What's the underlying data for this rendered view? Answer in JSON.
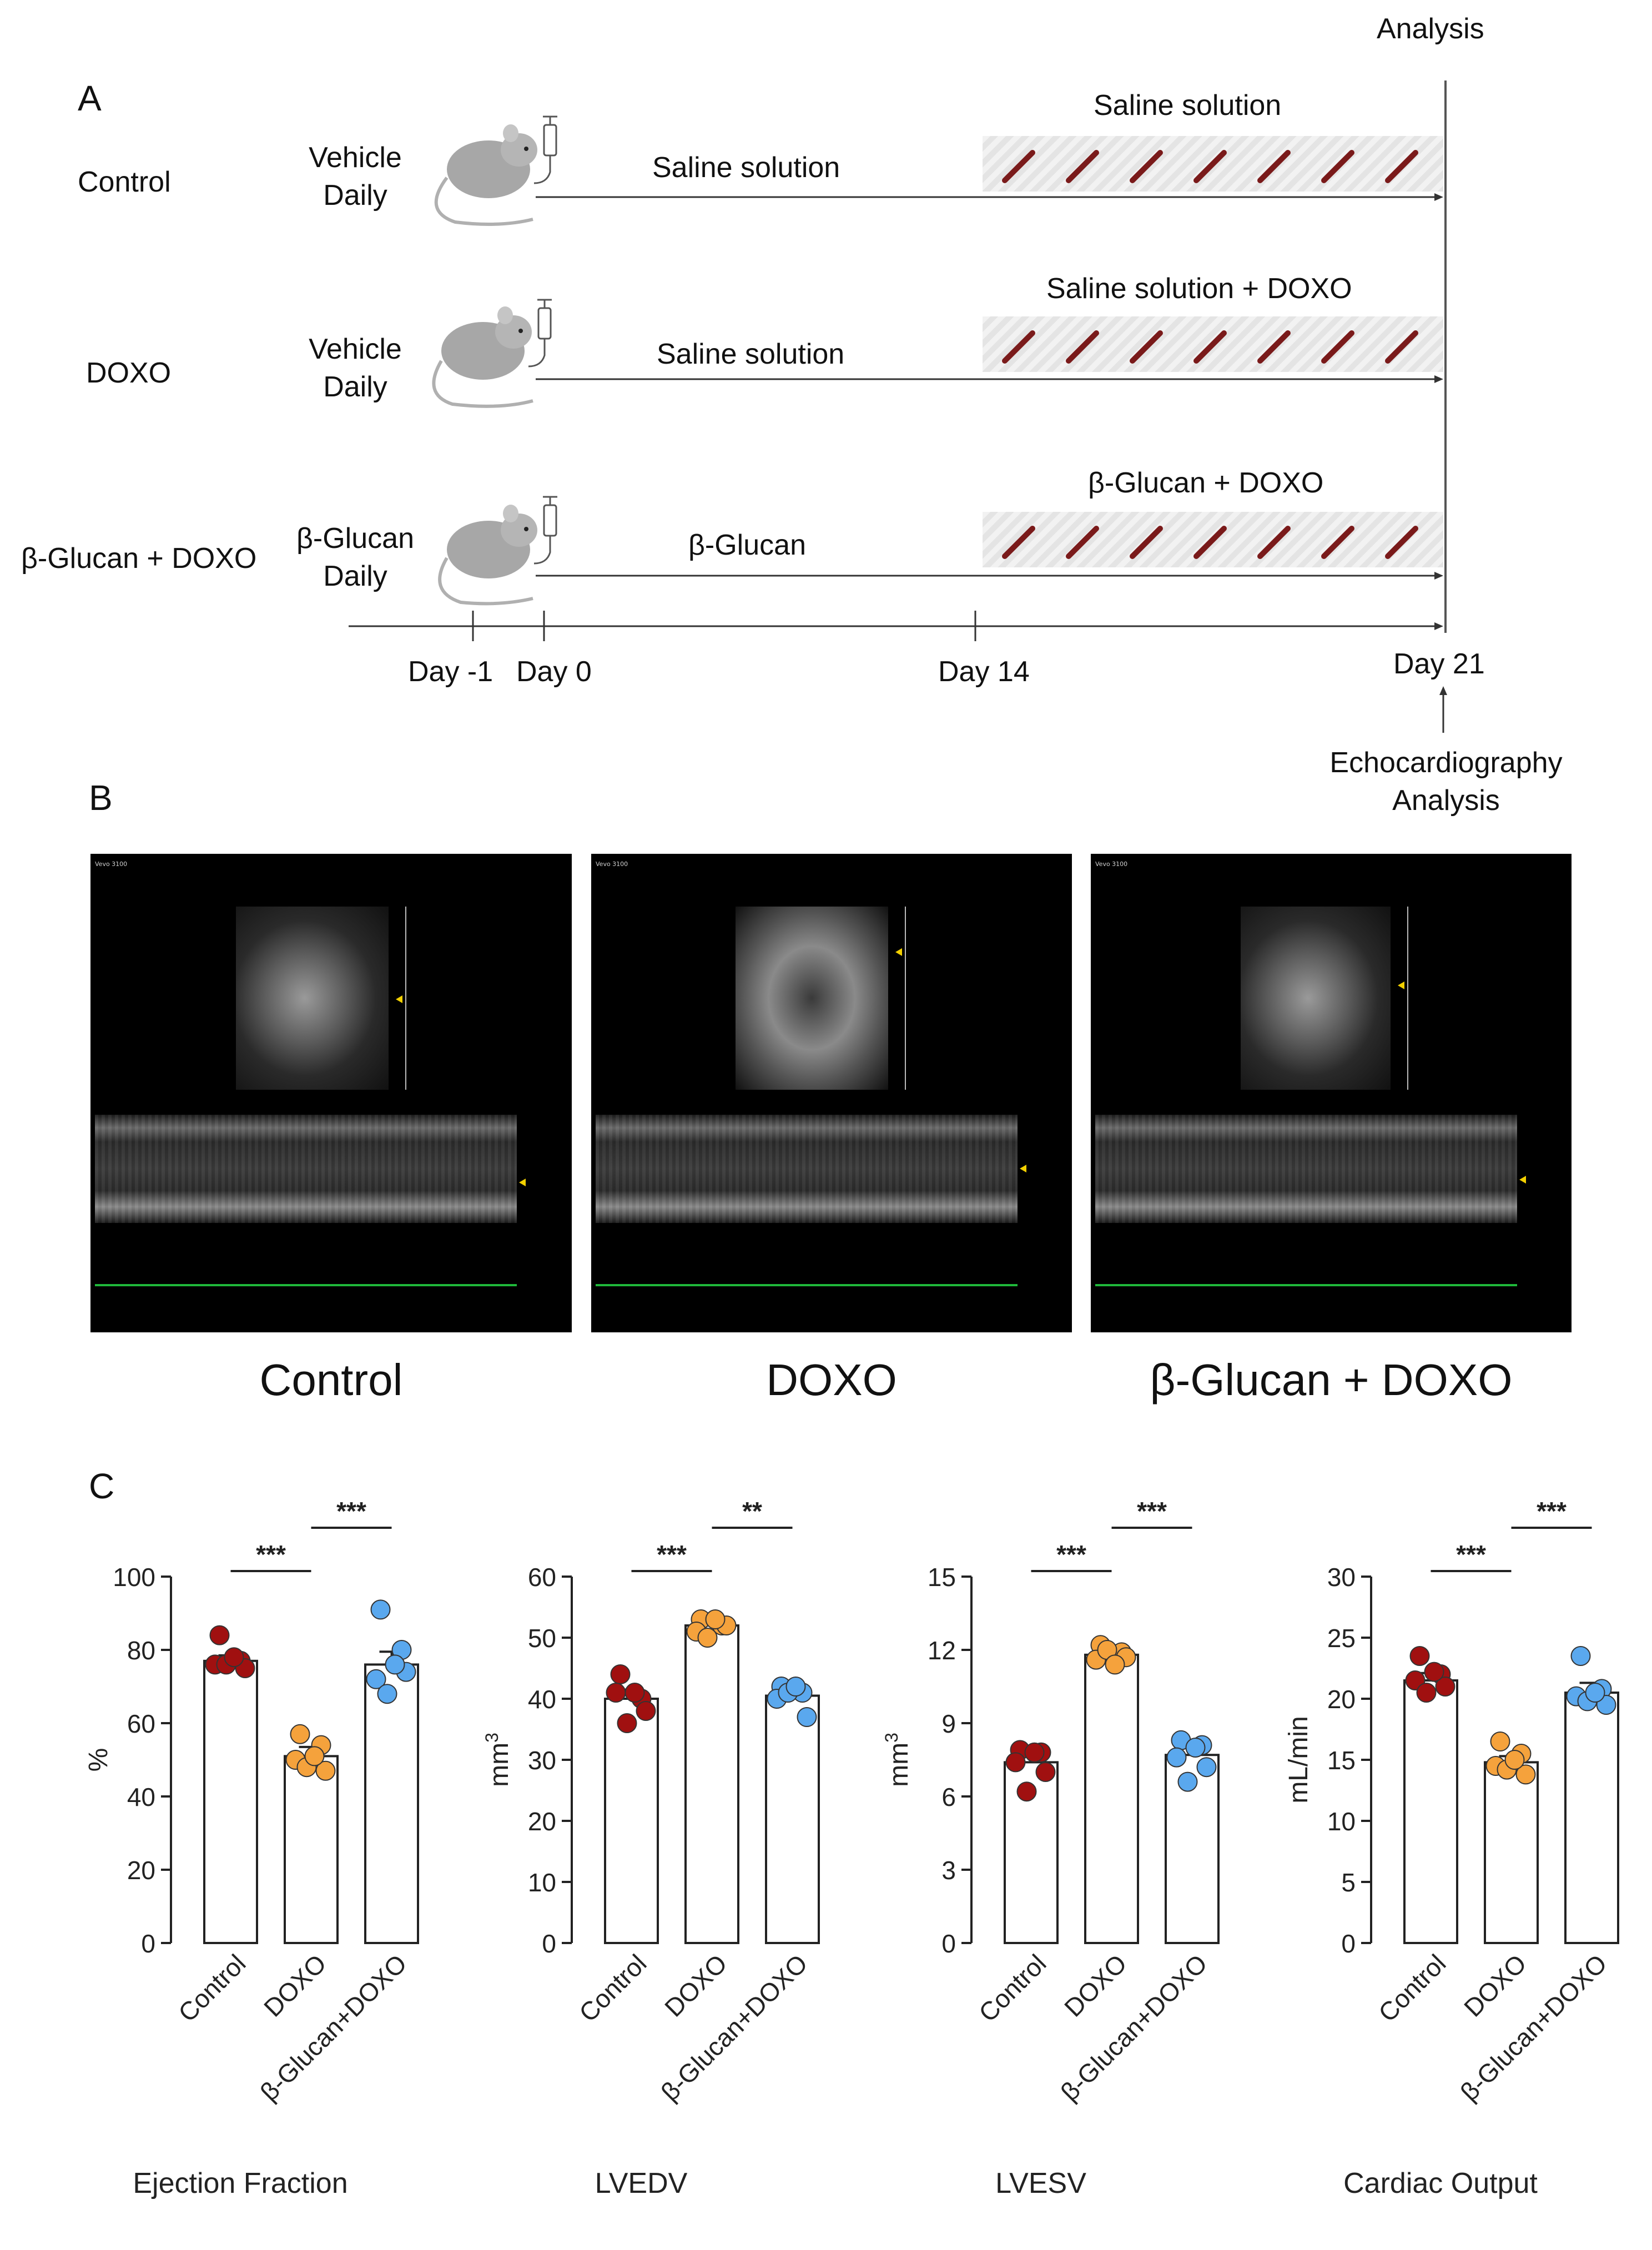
{
  "panelA": {
    "letter": "A",
    "analysis_top": "Analysis",
    "groups": [
      {
        "name": "Control",
        "treatment": "Vehicle\nDaily",
        "pretreat": "Saline solution",
        "phase2": "Saline solution"
      },
      {
        "name": "DOXO",
        "treatment": "Vehicle\nDaily",
        "pretreat": "Saline solution",
        "phase2": "Saline solution + DOXO"
      },
      {
        "name": "β-Glucan + DOXO",
        "treatment": "β-Glucan\nDaily",
        "pretreat": "β-Glucan",
        "phase2": "β-Glucan + DOXO"
      }
    ],
    "days": [
      "Day -1",
      "Day 0",
      "Day 14",
      "Day 21"
    ],
    "echo_label": "Echocardiography\nAnalysis"
  },
  "panelB": {
    "letter": "B",
    "images": [
      {
        "caption": "Control",
        "device": "Vevo 3100"
      },
      {
        "caption": "DOXO",
        "device": "Vevo 3100"
      },
      {
        "caption": "β-Glucan + DOXO",
        "device": "Vevo 3100"
      }
    ]
  },
  "panelC": {
    "letter": "C",
    "colors": {
      "control": "#a01010",
      "doxo": "#f5a23c",
      "glucan": "#5aa8ee"
    }
  },
  "chart_data": [
    {
      "type": "bar",
      "title": "Ejection Fraction",
      "ylabel": "%",
      "ylim": [
        0,
        100
      ],
      "yticks": [
        0,
        20,
        40,
        60,
        80,
        100
      ],
      "categories": [
        "Control",
        "DOXO",
        "β-Glucan+DOXO"
      ],
      "values": [
        77,
        51,
        76
      ],
      "errors": [
        1.5,
        2.5,
        3.5
      ],
      "points": [
        [
          84,
          77,
          76,
          75,
          76,
          78
        ],
        [
          57,
          54,
          50,
          47,
          48,
          51
        ],
        [
          91,
          80,
          72,
          74,
          68,
          76
        ]
      ],
      "significance": [
        {
          "from": 0,
          "to": 1,
          "label": "***"
        },
        {
          "from": 1,
          "to": 2,
          "label": "***"
        }
      ]
    },
    {
      "type": "bar",
      "title": "LVEDV",
      "ylabel": "mm3",
      "ylim": [
        0,
        60
      ],
      "yticks": [
        0,
        10,
        20,
        30,
        40,
        50,
        60
      ],
      "categories": [
        "Control",
        "DOXO",
        "β-Glucan+DOXO"
      ],
      "values": [
        40,
        52,
        40.5
      ],
      "errors": [
        1.5,
        0.7,
        1.2
      ],
      "points": [
        [
          44,
          40,
          41,
          38,
          36,
          41
        ],
        [
          53,
          52,
          51,
          52,
          50,
          53
        ],
        [
          42,
          41,
          40,
          37,
          41,
          42
        ]
      ],
      "significance": [
        {
          "from": 0,
          "to": 1,
          "label": "***"
        },
        {
          "from": 1,
          "to": 2,
          "label": "**"
        }
      ]
    },
    {
      "type": "bar",
      "title": "LVESV",
      "ylabel": "mm3",
      "ylim": [
        0,
        15
      ],
      "yticks": [
        0,
        3,
        6,
        9,
        12,
        15
      ],
      "categories": [
        "Control",
        "DOXO",
        "β-Glucan+DOXO"
      ],
      "values": [
        7.4,
        11.8,
        7.7
      ],
      "errors": [
        0.4,
        0.2,
        0.4
      ],
      "points": [
        [
          7.9,
          7.8,
          7.4,
          7.0,
          6.2,
          7.8
        ],
        [
          12.2,
          11.9,
          11.6,
          11.7,
          12.0,
          11.4
        ],
        [
          8.3,
          8.1,
          7.6,
          7.2,
          6.6,
          8.0
        ]
      ],
      "significance": [
        {
          "from": 0,
          "to": 1,
          "label": "***"
        },
        {
          "from": 1,
          "to": 2,
          "label": "***"
        }
      ]
    },
    {
      "type": "bar",
      "title": "Cardiac Output",
      "ylabel": "mL/min",
      "ylim": [
        0,
        30
      ],
      "yticks": [
        0,
        5,
        10,
        15,
        20,
        25,
        30
      ],
      "categories": [
        "Control",
        "DOXO",
        "β-Glucan+DOXO"
      ],
      "values": [
        21.5,
        14.8,
        20.5
      ],
      "errors": [
        0.6,
        0.5,
        0.8
      ],
      "points": [
        [
          23.5,
          22.0,
          21.5,
          21.0,
          20.5,
          22.2
        ],
        [
          16.5,
          15.5,
          14.5,
          13.8,
          14.2,
          15.0
        ],
        [
          23.5,
          20.8,
          20.2,
          19.5,
          19.8,
          20.5
        ]
      ],
      "significance": [
        {
          "from": 0,
          "to": 1,
          "label": "***"
        },
        {
          "from": 1,
          "to": 2,
          "label": "***"
        }
      ]
    }
  ]
}
